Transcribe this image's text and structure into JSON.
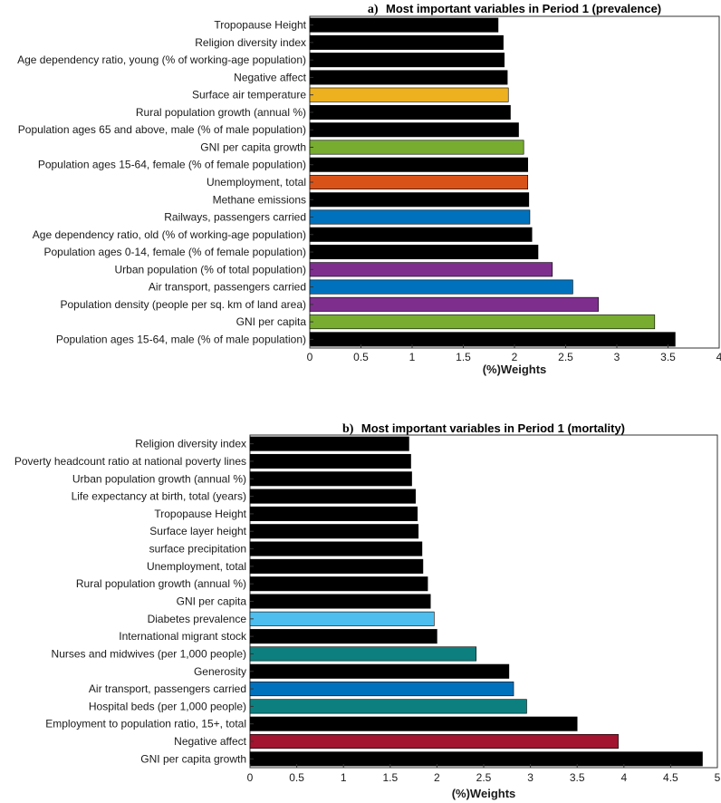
{
  "chart_data": [
    {
      "type": "bar",
      "orientation": "horizontal",
      "title_prefix": "a)",
      "title": "Most important variables in Period 1 (prevalence)",
      "xlabel": "(%)Weights",
      "ylabel": "",
      "xlim": [
        0,
        4
      ],
      "xticks": [
        "0",
        "0.5",
        "1",
        "1.5",
        "2",
        "2.5",
        "3",
        "3.5",
        "4"
      ],
      "grid": false,
      "categories": [
        "Tropopause Height",
        "Religion diversity index",
        "Age dependency ratio, young (% of working-age population)",
        "Negative affect",
        "Surface air temperature",
        "Rural population growth (annual %)",
        "Population ages 65 and above, male (% of male population)",
        "GNI per capita growth",
        "Population ages 15-64, female (% of female population)",
        "Unemployment, total",
        "Methane emissions",
        "Railways, passengers carried",
        "Age dependency ratio, old (% of working-age population)",
        "Population ages 0-14, female (% of female population)",
        "Urban population (% of total population)",
        "Air transport, passengers carried",
        "Population density (people per sq. km of land area)",
        "GNI per capita",
        "Population ages 15-64, male (% of male population)"
      ],
      "values": [
        1.84,
        1.89,
        1.9,
        1.93,
        1.94,
        1.96,
        2.04,
        2.09,
        2.13,
        2.13,
        2.14,
        2.15,
        2.17,
        2.23,
        2.37,
        2.57,
        2.82,
        3.37,
        3.57
      ],
      "colors": [
        "#000000",
        "#000000",
        "#000000",
        "#000000",
        "#EDB120",
        "#000000",
        "#000000",
        "#77AC30",
        "#000000",
        "#D95319",
        "#000000",
        "#0072BD",
        "#000000",
        "#000000",
        "#7E2F8E",
        "#0072BD",
        "#7E2F8E",
        "#77AC30",
        "#000000"
      ]
    },
    {
      "type": "bar",
      "orientation": "horizontal",
      "title_prefix": "b)",
      "title": "Most important variables in Period 1 (mortality)",
      "xlabel": "(%)Weights",
      "ylabel": "",
      "xlim": [
        0,
        5
      ],
      "xticks": [
        "0",
        "0.5",
        "1",
        "1.5",
        "2",
        "2.5",
        "3",
        "3.5",
        "4",
        "4.5",
        "5"
      ],
      "grid": false,
      "categories": [
        "Religion diversity index",
        "Poverty headcount ratio at national poverty lines",
        "Urban population growth (annual %)",
        "Life expectancy at birth, total (years)",
        "Tropopause Height",
        "Surface layer height",
        "surface precipitation",
        "Unemployment, total",
        "Rural population growth (annual %)",
        "GNI per capita",
        "Diabetes prevalence",
        "International migrant stock",
        "Nurses and midwives (per 1,000 people)",
        "Generosity",
        "Air transport, passengers carried",
        "Hospital beds (per 1,000 people)",
        "Employment to population ratio, 15+, total",
        "Negative affect",
        "GNI per capita growth"
      ],
      "values": [
        1.7,
        1.72,
        1.73,
        1.77,
        1.79,
        1.8,
        1.84,
        1.85,
        1.9,
        1.93,
        1.97,
        2.0,
        2.42,
        2.77,
        2.82,
        2.96,
        3.5,
        3.94,
        4.84
      ],
      "colors": [
        "#000000",
        "#000000",
        "#000000",
        "#000000",
        "#000000",
        "#000000",
        "#000000",
        "#000000",
        "#000000",
        "#000000",
        "#4DBEEE",
        "#000000",
        "#0E7F7F",
        "#000000",
        "#0072BD",
        "#0E7F7F",
        "#000000",
        "#A2142F",
        "#000000"
      ]
    }
  ]
}
